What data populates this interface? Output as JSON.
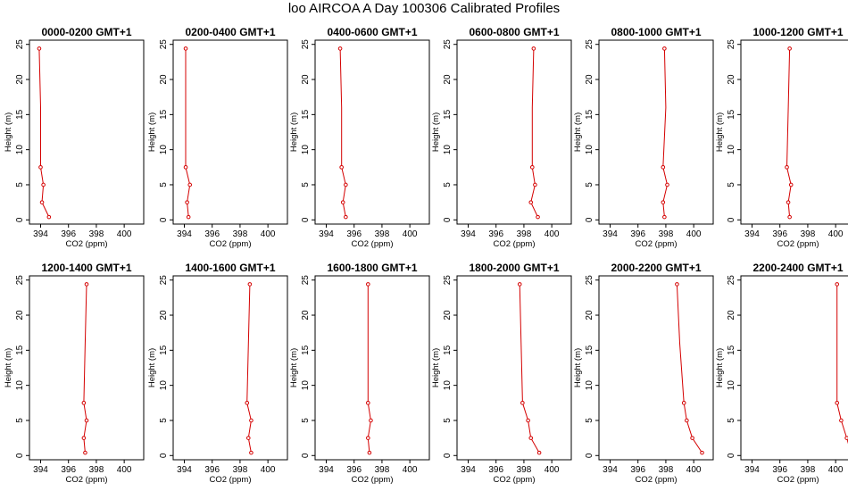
{
  "title": "loo AIRCOA A  Day 100306  Calibrated Profiles",
  "colors": {
    "profile": "#d40000",
    "axis": "#000000"
  },
  "chart_data": {
    "type": "line",
    "xlabel": "CO2 (ppm)",
    "ylabel": "Height (m)",
    "xlim": [
      393.2,
      401.4
    ],
    "ylim": [
      -0.6,
      25.6
    ],
    "xticks": [
      "394",
      "396",
      "398",
      "400"
    ],
    "yticks": [
      "0",
      "5",
      "10",
      "15",
      "20",
      "25"
    ],
    "heights": [
      24.4,
      16.0,
      7.5,
      5.0,
      2.5,
      0.4
    ],
    "grid": false,
    "panels": [
      {
        "title": "0000-0200 GMT+1",
        "co2": [
          393.9,
          394.0,
          394.0,
          394.2,
          394.1,
          394.6
        ]
      },
      {
        "title": "0200-0400 GMT+1",
        "co2": [
          394.1,
          394.1,
          394.1,
          394.4,
          394.2,
          394.3
        ]
      },
      {
        "title": "0400-0600 GMT+1",
        "co2": [
          395.0,
          395.1,
          395.1,
          395.4,
          395.2,
          395.4
        ]
      },
      {
        "title": "0600-0800 GMT+1",
        "co2": [
          398.7,
          398.6,
          398.6,
          398.8,
          398.5,
          399.0
        ]
      },
      {
        "title": "0800-1000 GMT+1",
        "co2": [
          397.9,
          398.0,
          397.8,
          398.1,
          397.8,
          397.9
        ]
      },
      {
        "title": "1000-1200 GMT+1",
        "co2": [
          396.7,
          396.6,
          396.5,
          396.8,
          396.6,
          396.7
        ]
      },
      {
        "title": "1200-1400 GMT+1",
        "co2": [
          397.3,
          397.2,
          397.1,
          397.3,
          397.1,
          397.2
        ]
      },
      {
        "title": "1400-1600 GMT+1",
        "co2": [
          398.7,
          398.6,
          398.5,
          398.8,
          398.6,
          398.8
        ]
      },
      {
        "title": "1600-1800 GMT+1",
        "co2": [
          397.0,
          397.0,
          397.0,
          397.2,
          397.0,
          397.1
        ]
      },
      {
        "title": "1800-2000 GMT+1",
        "co2": [
          397.7,
          397.8,
          397.9,
          398.3,
          398.5,
          399.1
        ]
      },
      {
        "title": "2000-2200 GMT+1",
        "co2": [
          398.8,
          399.0,
          399.3,
          399.5,
          399.9,
          400.6
        ]
      },
      {
        "title": "2200-2400 GMT+1",
        "co2": [
          400.1,
          400.1,
          400.1,
          400.4,
          400.8,
          401.1
        ]
      }
    ]
  }
}
